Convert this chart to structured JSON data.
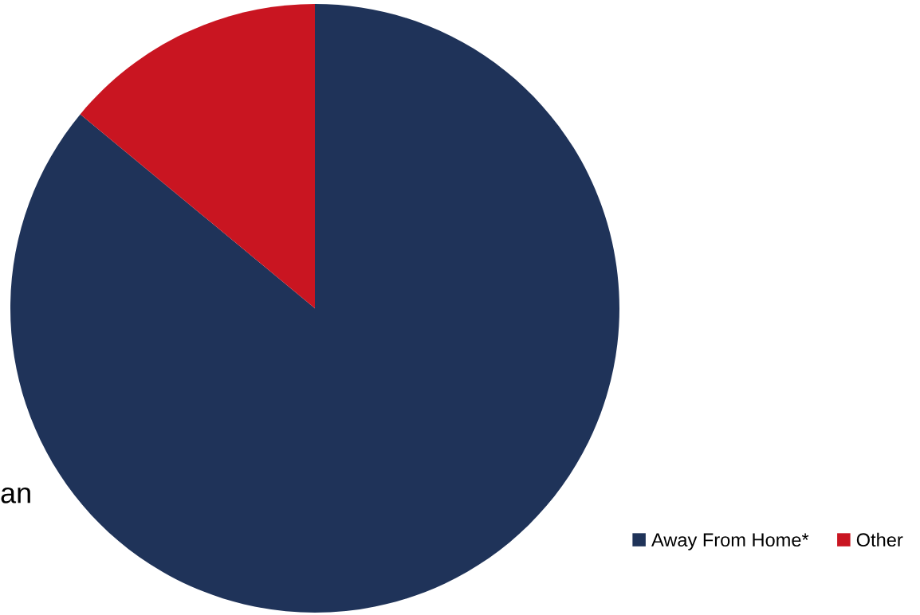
{
  "chart_data": {
    "type": "pie",
    "categories": [
      "Away From Home*",
      "Other"
    ],
    "values": [
      86,
      14
    ],
    "colors": [
      "#1f3359",
      "#c91521"
    ],
    "legend": "bottom right",
    "annotations": [
      "an"
    ]
  }
}
